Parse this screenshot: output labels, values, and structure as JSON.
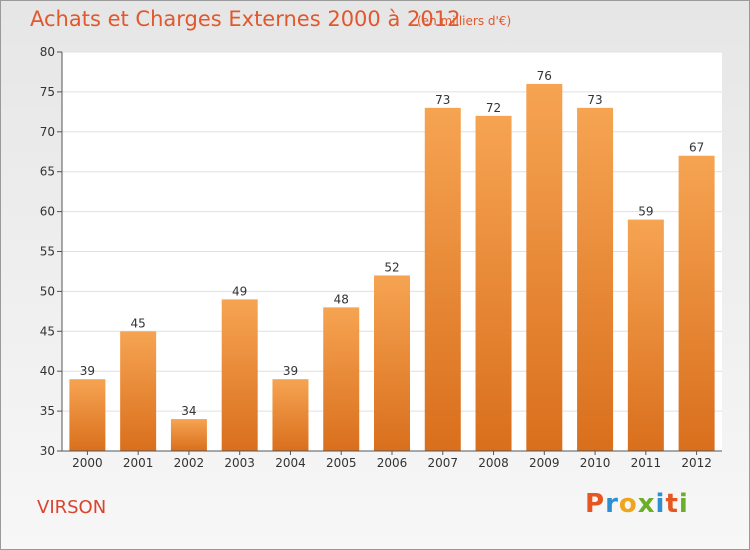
{
  "header": {
    "title": "Achats et Charges Externes 2000 à 2012",
    "subtitle": "(en milliers d'€)"
  },
  "footer": {
    "commune": "VIRSON",
    "brand": "Proxiti",
    "brand_colors": [
      "#e8561f",
      "#2e8fd0",
      "#f0a51e",
      "#6aae2a",
      "#2e8fd0",
      "#e8561f",
      "#6aae2a"
    ]
  },
  "colors": {
    "bar_top": "#f6a452",
    "bar_bottom": "#d96f1d",
    "title": "#e0582c",
    "grid": "#e0e0e0"
  },
  "chart_data": {
    "type": "bar",
    "title": "Achats et Charges Externes 2000 à 2012",
    "subtitle": "(en milliers d'€)",
    "categories": [
      "2000",
      "2001",
      "2002",
      "2003",
      "2004",
      "2005",
      "2006",
      "2007",
      "2008",
      "2009",
      "2010",
      "2011",
      "2012"
    ],
    "values": [
      39,
      45,
      34,
      49,
      39,
      48,
      52,
      73,
      72,
      76,
      73,
      59,
      67
    ],
    "ylim": [
      30,
      80
    ],
    "yticks": [
      30,
      35,
      40,
      45,
      50,
      55,
      60,
      65,
      70,
      75,
      80
    ],
    "grid": true,
    "data_labels": true
  }
}
